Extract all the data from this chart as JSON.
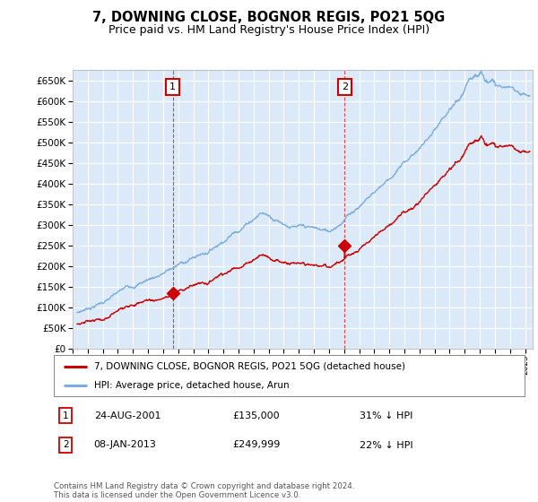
{
  "title": "7, DOWNING CLOSE, BOGNOR REGIS, PO21 5QG",
  "subtitle": "Price paid vs. HM Land Registry's House Price Index (HPI)",
  "ylim": [
    0,
    675000
  ],
  "yticks": [
    0,
    50000,
    100000,
    150000,
    200000,
    250000,
    300000,
    350000,
    400000,
    450000,
    500000,
    550000,
    600000,
    650000
  ],
  "xlim_start": 1995.3,
  "xlim_end": 2025.5,
  "plot_bg": "#dce9f8",
  "grid_color": "#ffffff",
  "red_line_color": "#cc0000",
  "blue_line_color": "#7aade0",
  "marker1_year": 2001.645,
  "marker1_value": 135000,
  "marker2_year": 2013.03,
  "marker2_value": 249999,
  "legend_label_red": "7, DOWNING CLOSE, BOGNOR REGIS, PO21 5QG (detached house)",
  "legend_label_blue": "HPI: Average price, detached house, Arun",
  "annotation1_num": "1",
  "annotation1_date": "24-AUG-2001",
  "annotation1_price": "£135,000",
  "annotation1_hpi": "31% ↓ HPI",
  "annotation2_num": "2",
  "annotation2_date": "08-JAN-2013",
  "annotation2_price": "£249,999",
  "annotation2_hpi": "22% ↓ HPI",
  "footnote": "Contains HM Land Registry data © Crown copyright and database right 2024.\nThis data is licensed under the Open Government Licence v3.0."
}
